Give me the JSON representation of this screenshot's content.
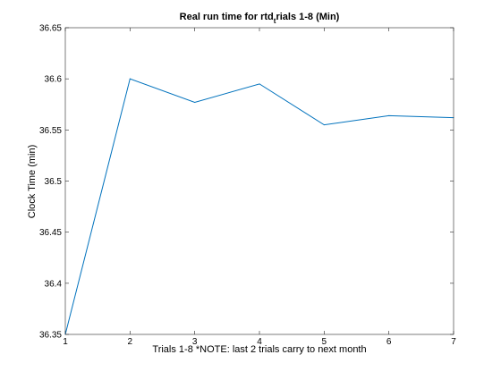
{
  "chart_data": {
    "type": "line",
    "title": {
      "before": "Real run time for rtd",
      "sub": "t",
      "after": "rials 1-8 (Min)"
    },
    "xlabel": "Trials 1-8 *NOTE: last 2 trials carry to next month",
    "ylabel": "Clock Time (min)",
    "xlim": [
      1,
      7
    ],
    "ylim": [
      36.35,
      36.65
    ],
    "xticks": [
      1,
      2,
      3,
      4,
      5,
      6,
      7
    ],
    "xtick_labels": [
      "1",
      "2",
      "3",
      "4",
      "5",
      "6",
      "7"
    ],
    "yticks": [
      36.35,
      36.4,
      36.45,
      36.5,
      36.55,
      36.6,
      36.65
    ],
    "ytick_labels": [
      "36.35",
      "36.4",
      "36.45",
      "36.5",
      "36.55",
      "36.6",
      "36.65"
    ],
    "grid": false,
    "series": [
      {
        "color": "#0072bd",
        "x": [
          1,
          2,
          3,
          4,
          5,
          6,
          7
        ],
        "y": [
          36.35,
          36.6,
          36.577,
          36.595,
          36.555,
          36.564,
          36.562
        ]
      }
    ]
  }
}
